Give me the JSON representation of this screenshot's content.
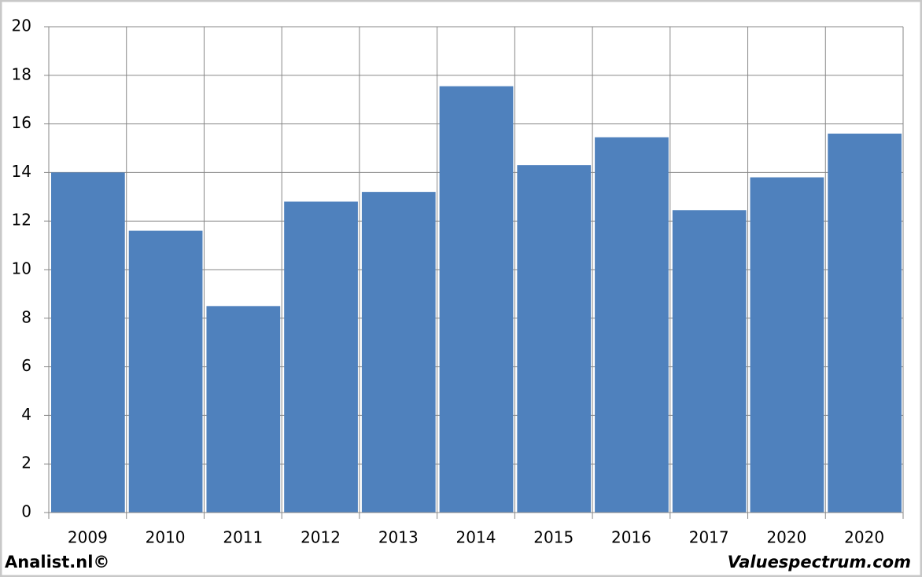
{
  "chart_data": {
    "type": "bar",
    "categories": [
      "2009",
      "2010",
      "2011",
      "2012",
      "2013",
      "2014",
      "2015",
      "2016",
      "2017",
      "2020",
      "2020"
    ],
    "values": [
      14.0,
      11.6,
      8.5,
      12.8,
      13.2,
      17.55,
      14.3,
      15.45,
      12.45,
      13.8,
      15.6
    ],
    "color": "#4f81bd",
    "ylim": [
      0,
      20
    ],
    "yticks": [
      0,
      2,
      4,
      6,
      8,
      10,
      12,
      14,
      16,
      18,
      20
    ],
    "grid": true,
    "credit_left": "Analist.nl©",
    "credit_right": "Valuespectrum.com"
  }
}
